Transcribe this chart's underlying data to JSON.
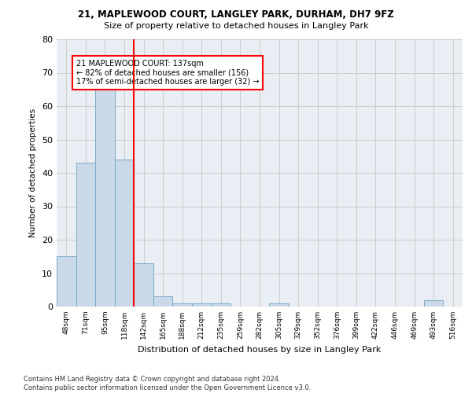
{
  "title1": "21, MAPLEWOOD COURT, LANGLEY PARK, DURHAM, DH7 9FZ",
  "title2": "Size of property relative to detached houses in Langley Park",
  "xlabel": "Distribution of detached houses by size in Langley Park",
  "ylabel": "Number of detached properties",
  "footnote": "Contains HM Land Registry data © Crown copyright and database right 2024.\nContains public sector information licensed under the Open Government Licence v3.0.",
  "bar_labels": [
    "48sqm",
    "71sqm",
    "95sqm",
    "118sqm",
    "142sqm",
    "165sqm",
    "188sqm",
    "212sqm",
    "235sqm",
    "259sqm",
    "282sqm",
    "305sqm",
    "329sqm",
    "352sqm",
    "376sqm",
    "399sqm",
    "422sqm",
    "446sqm",
    "469sqm",
    "493sqm",
    "516sqm"
  ],
  "bar_values": [
    15,
    43,
    66,
    44,
    13,
    3,
    1,
    1,
    1,
    0,
    0,
    1,
    0,
    0,
    0,
    0,
    0,
    0,
    0,
    2,
    0
  ],
  "bar_color": "#c9d9e8",
  "bar_edge_color": "#7aaac8",
  "vline_x": 3.5,
  "vline_color": "red",
  "ylim": [
    0,
    80
  ],
  "yticks": [
    0,
    10,
    20,
    30,
    40,
    50,
    60,
    70,
    80
  ],
  "annotation_title": "21 MAPLEWOOD COURT: 137sqm",
  "annotation_line1": "← 82% of detached houses are smaller (156)",
  "annotation_line2": "17% of semi-detached houses are larger (32) →",
  "grid_color": "#cccccc",
  "background_color": "#e8eef4"
}
